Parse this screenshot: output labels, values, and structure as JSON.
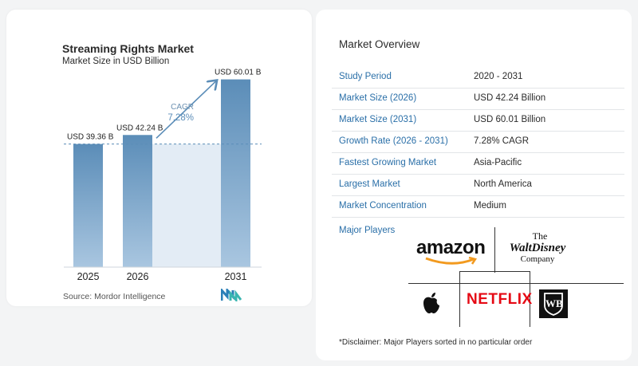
{
  "chart": {
    "title": "Streaming Rights Market",
    "subtitle": "Market Size in USD Billion",
    "source": "Source:  Mordor Intelligence"
  },
  "chart_data": {
    "type": "bar",
    "categories": [
      "2025",
      "2026",
      "2031"
    ],
    "values": [
      39.36,
      42.24,
      60.01
    ],
    "value_labels": [
      "USD 39.36 B",
      "USD 42.24 B",
      "USD 60.01 B"
    ],
    "cagr_label": "CAGR",
    "cagr_value": "7.28%",
    "title": "Streaming Rights Market",
    "subtitle": "Market Size in USD Billion",
    "ylim": [
      0,
      65
    ],
    "grid": false
  },
  "overview": {
    "title": "Market Overview",
    "rows": [
      {
        "key": "Study Period",
        "value": "2020 - 2031"
      },
      {
        "key": "Market Size (2026)",
        "value": "USD 42.24 Billion"
      },
      {
        "key": "Market Size (2031)",
        "value": "USD 60.01 Billion"
      },
      {
        "key": "Growth Rate (2026 - 2031)",
        "value": "7.28% CAGR"
      },
      {
        "key": "Fastest Growing Market",
        "value": "Asia-Pacific"
      },
      {
        "key": "Largest Market",
        "value": "North America"
      },
      {
        "key": "Market Concentration",
        "value": "Medium"
      }
    ],
    "players_label": "Major Players",
    "disclaimer": "*Disclaimer: Major Players sorted in no particular order",
    "logos": {
      "amazon": "amazon",
      "disney_the": "The",
      "disney_main": "WaltDisney",
      "disney_company": "Company",
      "netflix": "NETFLIX",
      "wb": "WB"
    }
  },
  "colors": {
    "bar": "#5b8db8",
    "bar_light": "#a9c6e0",
    "shade": "#e3ecf5",
    "accent": "#2a6fa8",
    "netflix": "#e50914"
  }
}
